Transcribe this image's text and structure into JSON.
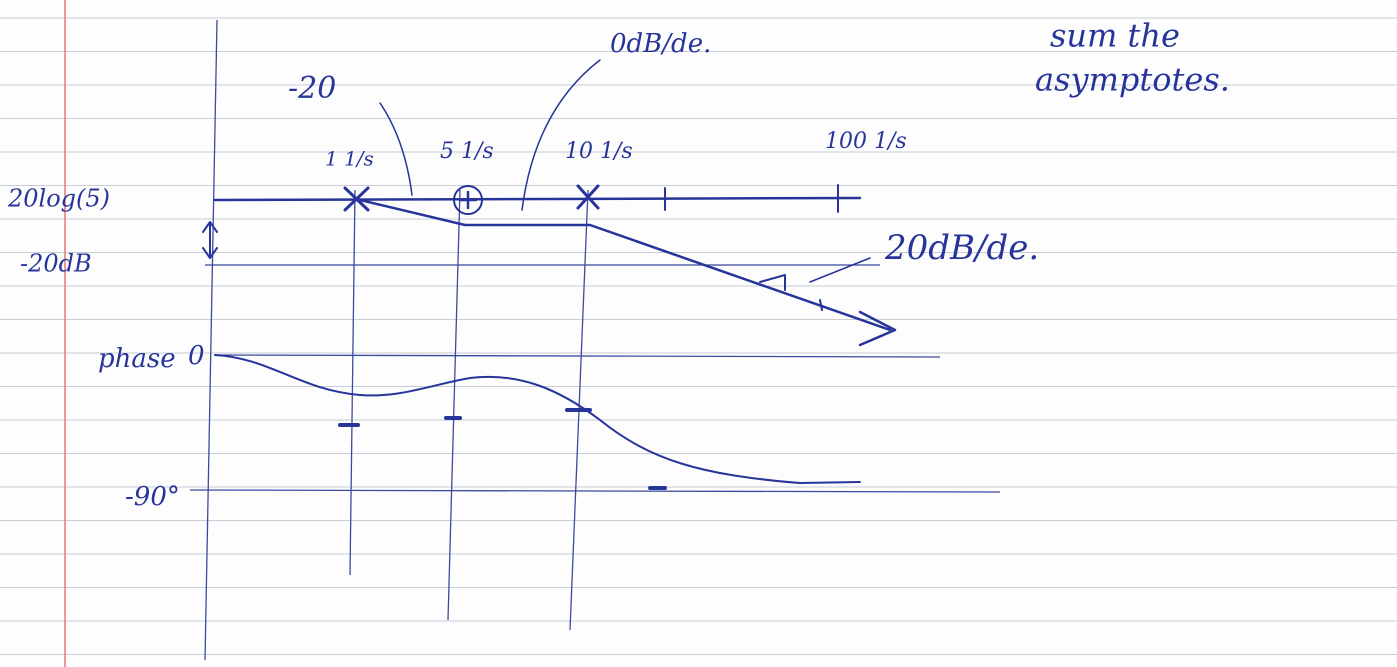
{
  "header": {
    "note_line1": "sum the",
    "note_line2": "asymptotes."
  },
  "magnitude": {
    "y_label_top": "20log(5)",
    "y_label_bottom": "-20dB",
    "slope_first": "-20",
    "slope_middle": "0dB/de.",
    "slope_last": "20dB/de.",
    "corners": [
      "1 1/s",
      "5 1/s",
      "10 1/s",
      "100 1/s"
    ]
  },
  "phase": {
    "label": "phase",
    "top": "0",
    "bottom": "-90°"
  }
}
